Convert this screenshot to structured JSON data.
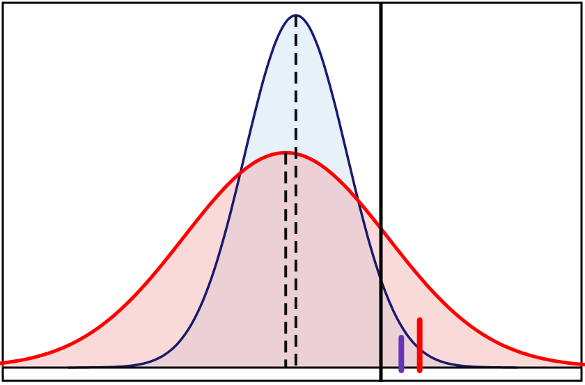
{
  "diagram": {
    "x_range": [
      -4.2,
      4.4
    ],
    "curves": [
      {
        "key": "narrow",
        "mean": 0.15,
        "sd": 0.75,
        "height": 1.0,
        "x_from": -3.2,
        "x_to": 3.4,
        "stroke": "#1a1a6e",
        "fill": "#ddecf7",
        "fill_opacity": 0.75
      },
      {
        "key": "wide",
        "mean": 0.0,
        "sd": 1.5,
        "height": 0.61,
        "x_from": -4.2,
        "x_to": 4.4,
        "stroke": "#ff0000",
        "fill": "#f2a0a0",
        "fill_opacity": 0.4
      }
    ],
    "dashed_mean_lines": [
      {
        "curve": "narrow",
        "color": "#111111"
      },
      {
        "curve": "wide",
        "color": "#111111"
      }
    ],
    "threshold": {
      "x": 1.4,
      "color": "#000000"
    },
    "tail_markers": [
      {
        "x": 1.7,
        "top": 0.085,
        "color": "#6633bb"
      },
      {
        "x": 1.97,
        "top": 0.135,
        "color": "#ff0000"
      }
    ],
    "frame_color": "#000000"
  }
}
